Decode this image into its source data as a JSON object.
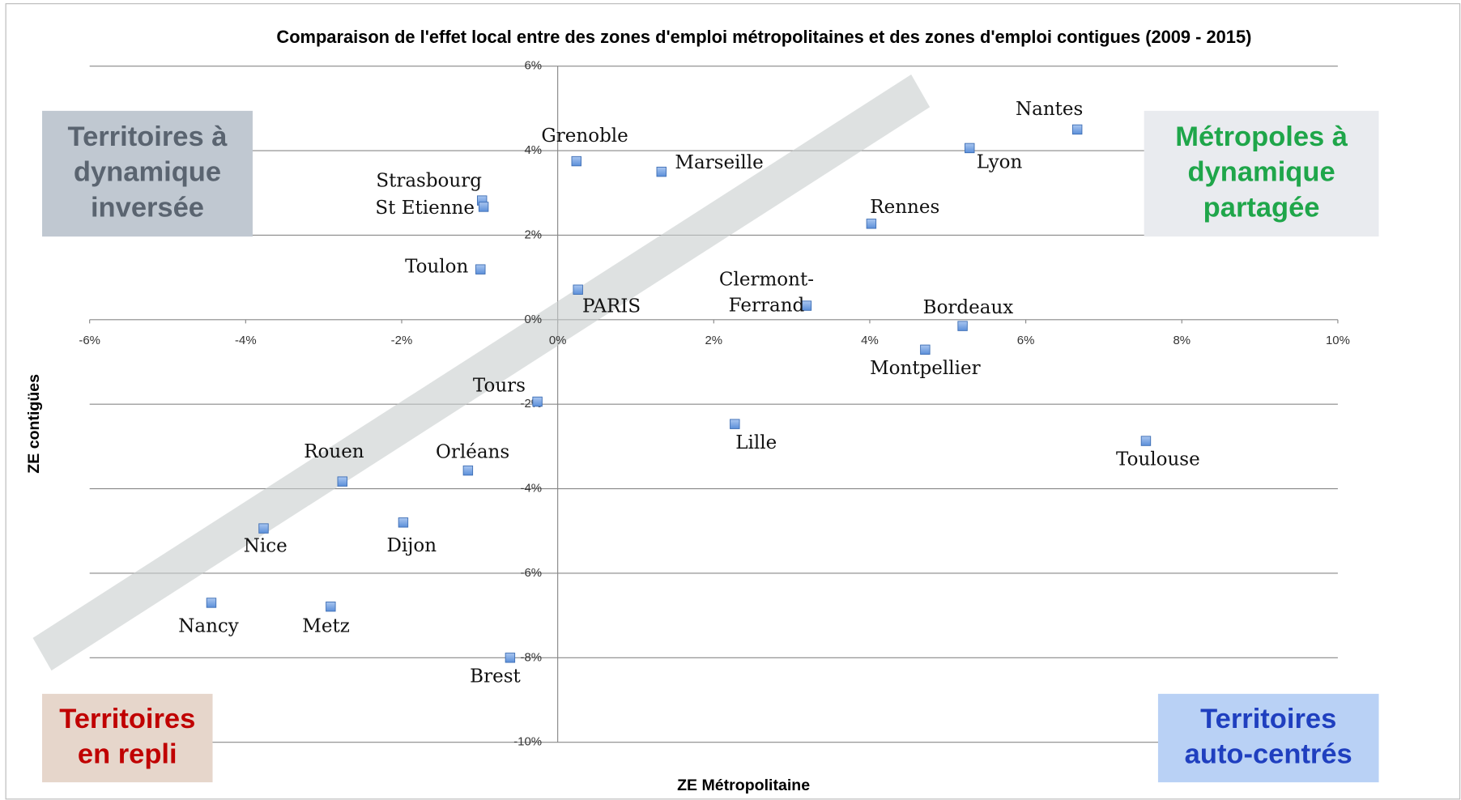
{
  "chart_data": {
    "type": "scatter",
    "title": "Comparaison de l'effet local entre des zones d'emploi métropolitaines et des zones d'emploi contigues (2009 - 2015)",
    "x_label": "ZE Métropolitaine",
    "y_label": "ZE contigües",
    "xlim": [
      -6,
      10
    ],
    "ylim": [
      -10,
      6
    ],
    "xticks": [
      {
        "value": -6,
        "label": "-6%"
      },
      {
        "value": -4,
        "label": "-4%"
      },
      {
        "value": -2,
        "label": "-2%"
      },
      {
        "value": 0,
        "label": "0%"
      },
      {
        "value": 2,
        "label": "2%"
      },
      {
        "value": 4,
        "label": "4%"
      },
      {
        "value": 6,
        "label": "6%"
      },
      {
        "value": 8,
        "label": "8%"
      },
      {
        "value": 10,
        "label": "10%"
      }
    ],
    "yticks": [
      {
        "value": -10,
        "label": "-10%"
      },
      {
        "value": -8,
        "label": "-8%"
      },
      {
        "value": -6,
        "label": "-6%"
      },
      {
        "value": -4,
        "label": "-4%"
      },
      {
        "value": -2,
        "label": "-2%"
      },
      {
        "value": 0,
        "label": "0%"
      },
      {
        "value": 2,
        "label": "2%"
      },
      {
        "value": 4,
        "label": "4%"
      },
      {
        "value": 6,
        "label": "6%"
      }
    ],
    "grid": true,
    "color": "#5b8fd9",
    "labels": [
      "Nantes",
      "Lyon",
      "Grenoble",
      "Marseille",
      "Strasbourg",
      "St Etienne",
      "Rennes",
      "Toulon",
      "PARIS",
      "Clermont-Ferrand",
      "Bordeaux",
      "Montpellier",
      "Tours",
      "Lille",
      "Toulouse",
      "Orléans",
      "Rouen",
      "Dijon",
      "Nice",
      "Nancy",
      "Metz",
      "Brest"
    ],
    "x": [
      6.66,
      5.28,
      0.24,
      1.33,
      -0.97,
      -0.95,
      4.02,
      -0.99,
      0.26,
      3.19,
      5.19,
      4.71,
      -0.26,
      2.27,
      7.54,
      -1.15,
      -2.76,
      -1.98,
      -3.77,
      -4.44,
      -2.91,
      -0.61
    ],
    "values": [
      4.5,
      4.06,
      3.75,
      3.5,
      2.82,
      2.67,
      2.27,
      1.19,
      0.71,
      0.33,
      -0.15,
      -0.71,
      -1.94,
      -2.47,
      -2.87,
      -3.57,
      -3.83,
      -4.8,
      -4.94,
      -6.7,
      -6.79,
      -8.0
    ],
    "quadrants": [
      {
        "lines": [
          "Territoires à",
          "dynamique",
          "inversée"
        ],
        "color": "#5a6470",
        "background": "#c0c8d1"
      },
      {
        "lines": [
          "Métropoles à",
          "dynamique",
          "partagée"
        ],
        "color": "#1fa64a",
        "background": "#e9ebef"
      },
      {
        "lines": [
          "Territoires",
          "en repli"
        ],
        "color": "#c00000",
        "background": "#e6d6cb"
      },
      {
        "lines": [
          "Territoires",
          "auto-centrés"
        ],
        "color": "#1f3fbf",
        "background": "#b9d1f5"
      }
    ]
  }
}
